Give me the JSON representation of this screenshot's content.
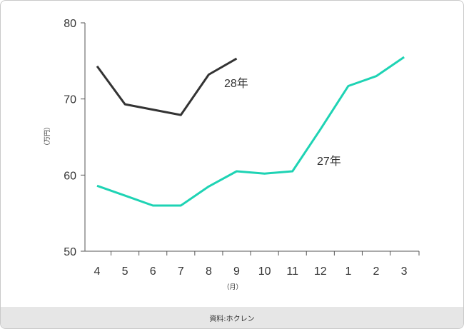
{
  "chart_data": {
    "type": "line",
    "categories": [
      "4",
      "5",
      "6",
      "7",
      "8",
      "9",
      "10",
      "11",
      "12",
      "1",
      "2",
      "3"
    ],
    "yticks": [
      "50",
      "60",
      "70",
      "80"
    ],
    "ylim": [
      50,
      80
    ],
    "ylabel": "（万円）",
    "xlabel": "（月）",
    "grid": false,
    "series": [
      {
        "name": "28年",
        "color": "#333333",
        "values": [
          74.3,
          69.3,
          68.6,
          67.9,
          73.2,
          75.3,
          null,
          null,
          null,
          null,
          null,
          null
        ]
      },
      {
        "name": "27年",
        "color": "#1ed3b4",
        "values": [
          58.6,
          57.3,
          56.0,
          56.0,
          58.5,
          60.5,
          60.2,
          60.5,
          66.0,
          71.7,
          73.0,
          75.5
        ]
      }
    ]
  },
  "footer": {
    "source": "資料:ホクレン"
  }
}
